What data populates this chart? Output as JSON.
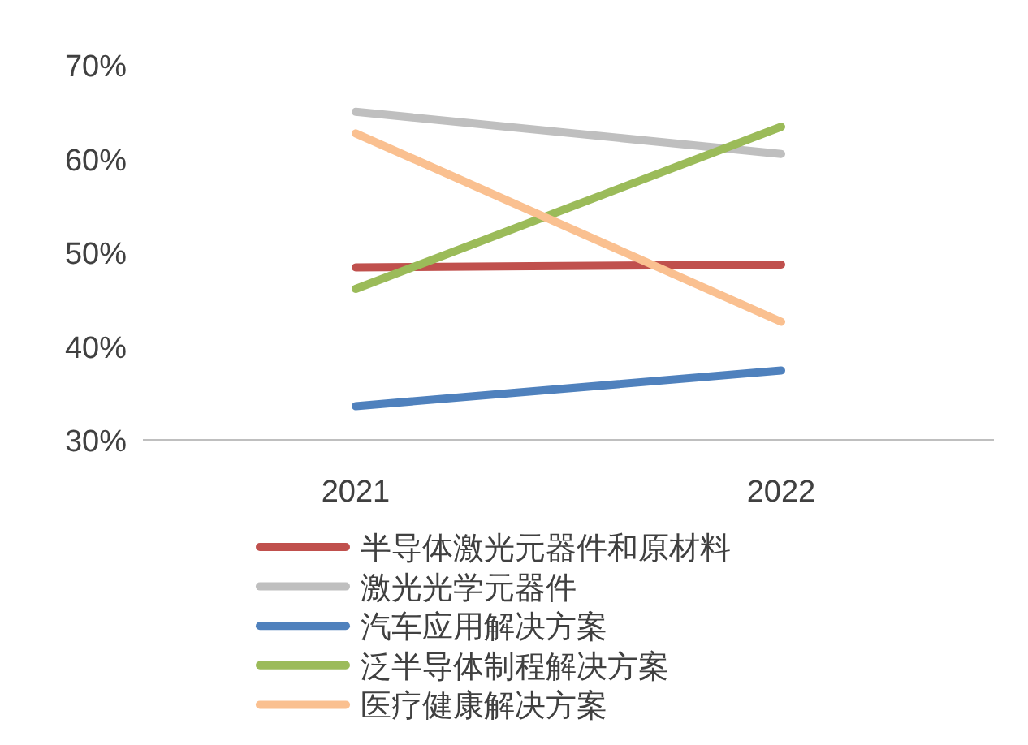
{
  "chart_data": {
    "type": "line",
    "categories": [
      "2021",
      "2022"
    ],
    "ylim": [
      30,
      70
    ],
    "yticks": [
      {
        "value": 30,
        "label": "30%"
      },
      {
        "value": 40,
        "label": "40%"
      },
      {
        "value": 50,
        "label": "50%"
      },
      {
        "value": 60,
        "label": "60%"
      },
      {
        "value": 70,
        "label": "70%"
      }
    ],
    "grid": false,
    "legend": "bottom",
    "marker": "none",
    "line_style": "solid",
    "series": [
      {
        "name": "半导体激光元器件和原材料",
        "color": "#c0504d",
        "values": [
          48.4,
          48.7
        ]
      },
      {
        "name": "激光光学元器件",
        "color": "#bfbfbf",
        "values": [
          65.0,
          60.5
        ]
      },
      {
        "name": "汽车应用解决方案",
        "color": "#4f81bd",
        "values": [
          33.6,
          37.4
        ]
      },
      {
        "name": "泛半导体制程解决方案",
        "color": "#9bbb59",
        "values": [
          46.1,
          63.4
        ]
      },
      {
        "name": "医疗健康解决方案",
        "color": "#fac090",
        "values": [
          62.7,
          42.6
        ]
      }
    ]
  }
}
